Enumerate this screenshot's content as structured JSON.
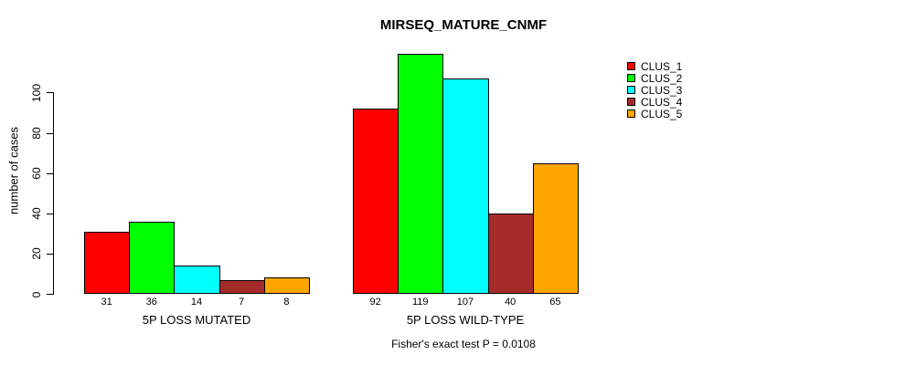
{
  "chart_data": {
    "type": "bar",
    "title": "MIRSEQ_MATURE_CNMF",
    "ylabel": "number of cases",
    "xlabel": "",
    "caption": "Fisher's exact test P = 0.0108",
    "categories": [
      "5P LOSS MUTATED",
      "5P LOSS WILD-TYPE"
    ],
    "series": [
      {
        "name": "CLUS_1",
        "color": "#FF0000",
        "values": [
          31,
          92
        ]
      },
      {
        "name": "CLUS_2",
        "color": "#00FF00",
        "values": [
          36,
          119
        ]
      },
      {
        "name": "CLUS_3",
        "color": "#00FFFF",
        "values": [
          14,
          107
        ]
      },
      {
        "name": "CLUS_4",
        "color": "#A52A2A",
        "values": [
          7,
          40
        ]
      },
      {
        "name": "CLUS_5",
        "color": "#FFA500",
        "values": [
          8,
          65
        ]
      }
    ],
    "show_value_labels": true,
    "yticks": [
      0,
      20,
      40,
      60,
      80,
      100
    ],
    "ylim": [
      0,
      125
    ],
    "grid": false,
    "legend_position": "top-right",
    "bar_border_color": "#000000",
    "background_color": "#FFFFFF"
  }
}
